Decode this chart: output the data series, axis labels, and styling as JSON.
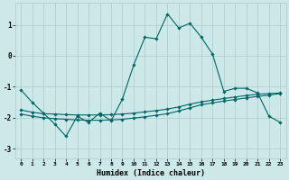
{
  "xlabel": "Humidex (Indice chaleur)",
  "ylabel": "",
  "bg_color": "#cce8e8",
  "grid_color": "#aacccc",
  "line_color": "#006666",
  "xlim": [
    -0.5,
    23.5
  ],
  "ylim": [
    -3.3,
    1.7
  ],
  "yticks": [
    -3,
    -2,
    -1,
    0,
    1
  ],
  "xticks": [
    0,
    1,
    2,
    3,
    4,
    5,
    6,
    7,
    8,
    9,
    10,
    11,
    12,
    13,
    14,
    15,
    16,
    17,
    18,
    19,
    20,
    21,
    22,
    23
  ],
  "series1_x": [
    0,
    1,
    2,
    3,
    4,
    5,
    6,
    7,
    8,
    9,
    10,
    11,
    12,
    13,
    14,
    15,
    16,
    17,
    18,
    19,
    20,
    21,
    22,
    23
  ],
  "series1_y": [
    -1.1,
    -1.5,
    -1.85,
    -2.2,
    -2.6,
    -1.95,
    -2.15,
    -1.85,
    -2.1,
    -1.4,
    -0.3,
    0.6,
    0.55,
    1.35,
    0.9,
    1.05,
    0.6,
    0.05,
    -1.15,
    -1.05,
    -1.05,
    -1.2,
    -1.95,
    -2.15
  ],
  "series2_x": [
    0,
    1,
    2,
    3,
    4,
    5,
    6,
    7,
    8,
    9,
    10,
    11,
    12,
    13,
    14,
    15,
    16,
    17,
    18,
    19,
    20,
    21,
    22,
    23
  ],
  "series2_y": [
    -1.75,
    -1.82,
    -1.87,
    -1.88,
    -1.9,
    -1.91,
    -1.91,
    -1.91,
    -1.9,
    -1.88,
    -1.85,
    -1.81,
    -1.77,
    -1.72,
    -1.65,
    -1.56,
    -1.49,
    -1.43,
    -1.38,
    -1.33,
    -1.28,
    -1.24,
    -1.22,
    -1.2
  ],
  "series3_x": [
    0,
    1,
    2,
    3,
    4,
    5,
    6,
    7,
    8,
    9,
    10,
    11,
    12,
    13,
    14,
    15,
    16,
    17,
    18,
    19,
    20,
    21,
    22,
    23
  ],
  "series3_y": [
    -1.88,
    -1.95,
    -2.0,
    -2.03,
    -2.05,
    -2.07,
    -2.08,
    -2.08,
    -2.07,
    -2.05,
    -2.01,
    -1.97,
    -1.92,
    -1.87,
    -1.78,
    -1.68,
    -1.58,
    -1.52,
    -1.46,
    -1.41,
    -1.36,
    -1.31,
    -1.27,
    -1.22
  ]
}
